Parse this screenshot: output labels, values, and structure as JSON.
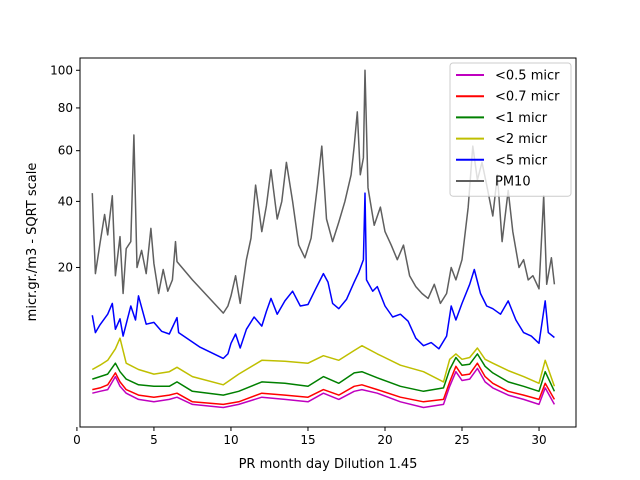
{
  "chart_data": {
    "type": "line",
    "title": "",
    "xlabel": "PR month day  Dilution 1.45",
    "ylabel": "micr.gr./m3 - SQRT scale",
    "yscale": "sqrt",
    "xlim": [
      0.2,
      32.4
    ],
    "ylim": [
      0,
      107
    ],
    "xticks": [
      0,
      5,
      10,
      15,
      20,
      25,
      30
    ],
    "yticks": [
      20,
      40,
      60,
      80,
      100
    ],
    "grid": false,
    "legend_position": "top-right",
    "series": [
      {
        "name": "<0.5 micr",
        "color": "#bf00bf",
        "points": [
          [
            1.0,
            0.9
          ],
          [
            1.5,
            1.0
          ],
          [
            2.0,
            1.1
          ],
          [
            2.5,
            2.0
          ],
          [
            2.8,
            1.3
          ],
          [
            3.2,
            0.9
          ],
          [
            4.0,
            0.6
          ],
          [
            5.0,
            0.5
          ],
          [
            6.0,
            0.6
          ],
          [
            6.5,
            0.7
          ],
          [
            7.5,
            0.4
          ],
          [
            9.5,
            0.3
          ],
          [
            10.5,
            0.4
          ],
          [
            12.0,
            0.7
          ],
          [
            13.5,
            0.6
          ],
          [
            15.0,
            0.5
          ],
          [
            16.0,
            0.9
          ],
          [
            17.0,
            0.6
          ],
          [
            18.0,
            1.0
          ],
          [
            18.5,
            1.1
          ],
          [
            19.5,
            0.9
          ],
          [
            21.0,
            0.5
          ],
          [
            22.5,
            0.3
          ],
          [
            23.8,
            0.4
          ],
          [
            24.2,
            1.3
          ],
          [
            24.6,
            2.4
          ],
          [
            25.0,
            1.7
          ],
          [
            25.5,
            1.8
          ],
          [
            26.0,
            2.7
          ],
          [
            26.5,
            1.6
          ],
          [
            27.0,
            1.2
          ],
          [
            28.0,
            0.8
          ],
          [
            29.0,
            0.6
          ],
          [
            30.0,
            0.4
          ],
          [
            30.4,
            1.2
          ],
          [
            31.0,
            0.4
          ]
        ]
      },
      {
        "name": "<0.7 micr",
        "color": "#ff0000",
        "points": [
          [
            1.0,
            1.1
          ],
          [
            1.5,
            1.2
          ],
          [
            2.0,
            1.4
          ],
          [
            2.5,
            2.3
          ],
          [
            2.8,
            1.6
          ],
          [
            3.2,
            1.1
          ],
          [
            4.0,
            0.8
          ],
          [
            5.0,
            0.7
          ],
          [
            6.0,
            0.8
          ],
          [
            6.5,
            0.9
          ],
          [
            7.5,
            0.5
          ],
          [
            9.5,
            0.4
          ],
          [
            10.5,
            0.5
          ],
          [
            12.0,
            0.9
          ],
          [
            13.5,
            0.8
          ],
          [
            15.0,
            0.7
          ],
          [
            16.0,
            1.1
          ],
          [
            17.0,
            0.8
          ],
          [
            18.0,
            1.3
          ],
          [
            18.5,
            1.4
          ],
          [
            19.5,
            1.1
          ],
          [
            21.0,
            0.7
          ],
          [
            22.5,
            0.5
          ],
          [
            23.8,
            0.6
          ],
          [
            24.2,
            1.6
          ],
          [
            24.6,
            2.9
          ],
          [
            25.0,
            2.1
          ],
          [
            25.5,
            2.2
          ],
          [
            26.0,
            3.2
          ],
          [
            26.5,
            2.0
          ],
          [
            27.0,
            1.5
          ],
          [
            28.0,
            1.0
          ],
          [
            29.0,
            0.8
          ],
          [
            30.0,
            0.6
          ],
          [
            30.4,
            1.5
          ],
          [
            31.0,
            0.6
          ]
        ]
      },
      {
        "name": "<1 micr",
        "color": "#008000",
        "points": [
          [
            1.0,
            1.8
          ],
          [
            1.5,
            2.0
          ],
          [
            2.0,
            2.2
          ],
          [
            2.5,
            3.2
          ],
          [
            2.8,
            2.4
          ],
          [
            3.2,
            1.8
          ],
          [
            4.0,
            1.4
          ],
          [
            5.0,
            1.3
          ],
          [
            6.0,
            1.3
          ],
          [
            6.5,
            1.6
          ],
          [
            7.5,
            1.0
          ],
          [
            9.5,
            0.8
          ],
          [
            10.5,
            1.0
          ],
          [
            12.0,
            1.6
          ],
          [
            13.5,
            1.5
          ],
          [
            15.0,
            1.3
          ],
          [
            16.0,
            2.0
          ],
          [
            17.0,
            1.5
          ],
          [
            18.0,
            2.3
          ],
          [
            18.5,
            2.4
          ],
          [
            19.5,
            1.9
          ],
          [
            21.0,
            1.3
          ],
          [
            22.5,
            1.0
          ],
          [
            23.8,
            1.2
          ],
          [
            24.2,
            2.6
          ],
          [
            24.6,
            3.8
          ],
          [
            25.0,
            3.0
          ],
          [
            25.5,
            3.1
          ],
          [
            26.0,
            4.2
          ],
          [
            26.5,
            2.9
          ],
          [
            27.0,
            2.3
          ],
          [
            28.0,
            1.6
          ],
          [
            29.0,
            1.3
          ],
          [
            30.0,
            1.0
          ],
          [
            30.4,
            2.4
          ],
          [
            31.0,
            1.0
          ]
        ]
      },
      {
        "name": "<2 micr",
        "color": "#bfbf00",
        "points": [
          [
            1.0,
            2.6
          ],
          [
            1.5,
            3.0
          ],
          [
            2.0,
            3.5
          ],
          [
            2.5,
            4.8
          ],
          [
            2.8,
            6.2
          ],
          [
            3.2,
            3.2
          ],
          [
            4.0,
            2.6
          ],
          [
            5.0,
            2.2
          ],
          [
            6.0,
            2.4
          ],
          [
            6.5,
            2.8
          ],
          [
            7.5,
            2.0
          ],
          [
            9.5,
            1.4
          ],
          [
            10.5,
            2.2
          ],
          [
            12.0,
            3.5
          ],
          [
            13.5,
            3.4
          ],
          [
            15.0,
            3.2
          ],
          [
            16.0,
            4.0
          ],
          [
            17.0,
            3.5
          ],
          [
            18.0,
            4.6
          ],
          [
            18.5,
            5.2
          ],
          [
            19.5,
            4.2
          ],
          [
            21.0,
            3.0
          ],
          [
            22.5,
            2.4
          ],
          [
            23.8,
            1.6
          ],
          [
            24.2,
            3.6
          ],
          [
            24.6,
            4.2
          ],
          [
            25.0,
            3.6
          ],
          [
            25.5,
            3.8
          ],
          [
            26.0,
            4.9
          ],
          [
            26.5,
            3.6
          ],
          [
            27.0,
            3.2
          ],
          [
            28.0,
            2.5
          ],
          [
            29.0,
            2.0
          ],
          [
            30.0,
            1.5
          ],
          [
            30.4,
            3.5
          ],
          [
            31.0,
            1.3
          ]
        ]
      },
      {
        "name": "<5 micr",
        "color": "#0000ff",
        "points": [
          [
            1.0,
            9.8
          ],
          [
            1.2,
            7.0
          ],
          [
            1.5,
            8.2
          ],
          [
            2.0,
            10.0
          ],
          [
            2.3,
            12.0
          ],
          [
            2.5,
            7.5
          ],
          [
            2.8,
            9.2
          ],
          [
            3.0,
            6.5
          ],
          [
            3.5,
            11.5
          ],
          [
            3.8,
            9.0
          ],
          [
            4.0,
            13.5
          ],
          [
            4.5,
            8.3
          ],
          [
            5.0,
            8.6
          ],
          [
            5.5,
            7.2
          ],
          [
            6.0,
            6.8
          ],
          [
            6.5,
            9.4
          ],
          [
            6.6,
            7.0
          ],
          [
            8.0,
            5.0
          ],
          [
            9.5,
            3.7
          ],
          [
            9.8,
            4.2
          ],
          [
            10.0,
            5.5
          ],
          [
            10.3,
            6.8
          ],
          [
            10.6,
            4.9
          ],
          [
            11.0,
            7.5
          ],
          [
            11.5,
            9.5
          ],
          [
            12.0,
            8.0
          ],
          [
            12.3,
            10.5
          ],
          [
            12.6,
            13.0
          ],
          [
            13.0,
            10.0
          ],
          [
            13.5,
            12.5
          ],
          [
            14.0,
            14.5
          ],
          [
            14.5,
            11.5
          ],
          [
            15.0,
            11.8
          ],
          [
            15.5,
            15.0
          ],
          [
            16.0,
            18.5
          ],
          [
            16.3,
            16.5
          ],
          [
            16.6,
            12.0
          ],
          [
            17.0,
            11.0
          ],
          [
            17.5,
            12.8
          ],
          [
            18.0,
            16.5
          ],
          [
            18.3,
            18.8
          ],
          [
            18.6,
            22.0
          ],
          [
            18.7,
            43.0
          ],
          [
            18.8,
            17.0
          ],
          [
            19.2,
            14.5
          ],
          [
            19.5,
            15.5
          ],
          [
            20.0,
            11.5
          ],
          [
            20.5,
            9.5
          ],
          [
            21.0,
            10.0
          ],
          [
            21.5,
            8.8
          ],
          [
            22.0,
            6.2
          ],
          [
            22.5,
            5.2
          ],
          [
            23.0,
            5.6
          ],
          [
            23.5,
            4.8
          ],
          [
            24.0,
            6.5
          ],
          [
            24.3,
            11.5
          ],
          [
            24.6,
            9.0
          ],
          [
            25.0,
            12.0
          ],
          [
            25.5,
            16.0
          ],
          [
            25.8,
            19.5
          ],
          [
            26.2,
            14.0
          ],
          [
            26.6,
            11.5
          ],
          [
            27.0,
            11.0
          ],
          [
            27.5,
            10.0
          ],
          [
            28.0,
            12.5
          ],
          [
            28.5,
            9.0
          ],
          [
            29.0,
            7.0
          ],
          [
            29.5,
            6.5
          ],
          [
            30.0,
            5.5
          ],
          [
            30.4,
            12.5
          ],
          [
            30.6,
            7.0
          ],
          [
            31.0,
            6.3
          ]
        ]
      },
      {
        "name": "PM10",
        "color": "#5f5f5f",
        "points": [
          [
            1.0,
            43.0
          ],
          [
            1.2,
            18.5
          ],
          [
            1.5,
            26.5
          ],
          [
            1.8,
            35.5
          ],
          [
            2.0,
            29.0
          ],
          [
            2.3,
            42.0
          ],
          [
            2.5,
            18.0
          ],
          [
            2.8,
            28.5
          ],
          [
            3.0,
            14.0
          ],
          [
            3.2,
            25.0
          ],
          [
            3.5,
            27.0
          ],
          [
            3.7,
            67.0
          ],
          [
            3.9,
            20.0
          ],
          [
            4.2,
            24.5
          ],
          [
            4.5,
            18.5
          ],
          [
            4.8,
            31.0
          ],
          [
            5.0,
            21.0
          ],
          [
            5.3,
            14.0
          ],
          [
            5.6,
            19.5
          ],
          [
            5.9,
            14.5
          ],
          [
            6.2,
            17.0
          ],
          [
            6.4,
            27.0
          ],
          [
            6.5,
            21.5
          ],
          [
            7.5,
            17.0
          ],
          [
            9.5,
            10.2
          ],
          [
            9.8,
            11.5
          ],
          [
            10.0,
            13.5
          ],
          [
            10.3,
            18.0
          ],
          [
            10.6,
            12.0
          ],
          [
            11.0,
            22.0
          ],
          [
            11.3,
            28.0
          ],
          [
            11.6,
            46.0
          ],
          [
            12.0,
            30.0
          ],
          [
            12.3,
            38.5
          ],
          [
            12.6,
            52.0
          ],
          [
            13.0,
            34.0
          ],
          [
            13.3,
            40.0
          ],
          [
            13.6,
            55.0
          ],
          [
            14.0,
            40.0
          ],
          [
            14.4,
            26.0
          ],
          [
            14.8,
            22.5
          ],
          [
            15.2,
            28.0
          ],
          [
            15.6,
            45.0
          ],
          [
            15.9,
            62.0
          ],
          [
            16.2,
            34.0
          ],
          [
            16.6,
            27.0
          ],
          [
            17.0,
            33.0
          ],
          [
            17.4,
            40.0
          ],
          [
            17.8,
            50.0
          ],
          [
            18.0,
            62.0
          ],
          [
            18.2,
            78.0
          ],
          [
            18.4,
            50.0
          ],
          [
            18.6,
            57.0
          ],
          [
            18.7,
            100.0
          ],
          [
            18.9,
            45.0
          ],
          [
            19.3,
            32.0
          ],
          [
            19.7,
            38.0
          ],
          [
            20.0,
            30.0
          ],
          [
            20.4,
            26.0
          ],
          [
            20.8,
            22.0
          ],
          [
            21.2,
            26.0
          ],
          [
            21.6,
            18.0
          ],
          [
            22.0,
            15.5
          ],
          [
            22.4,
            14.0
          ],
          [
            22.8,
            13.0
          ],
          [
            23.2,
            16.0
          ],
          [
            23.6,
            12.0
          ],
          [
            24.0,
            14.0
          ],
          [
            24.3,
            20.0
          ],
          [
            24.6,
            17.0
          ],
          [
            25.0,
            22.0
          ],
          [
            25.4,
            38.0
          ],
          [
            25.7,
            62.0
          ],
          [
            26.0,
            48.0
          ],
          [
            26.3,
            55.0
          ],
          [
            26.6,
            46.0
          ],
          [
            27.0,
            35.0
          ],
          [
            27.3,
            50.0
          ],
          [
            27.6,
            27.0
          ],
          [
            28.0,
            44.0
          ],
          [
            28.3,
            30.0
          ],
          [
            28.7,
            20.0
          ],
          [
            29.0,
            22.0
          ],
          [
            29.3,
            17.0
          ],
          [
            29.6,
            18.0
          ],
          [
            30.0,
            15.0
          ],
          [
            30.3,
            42.0
          ],
          [
            30.5,
            16.0
          ],
          [
            30.8,
            22.5
          ],
          [
            31.0,
            16.0
          ]
        ]
      }
    ]
  }
}
